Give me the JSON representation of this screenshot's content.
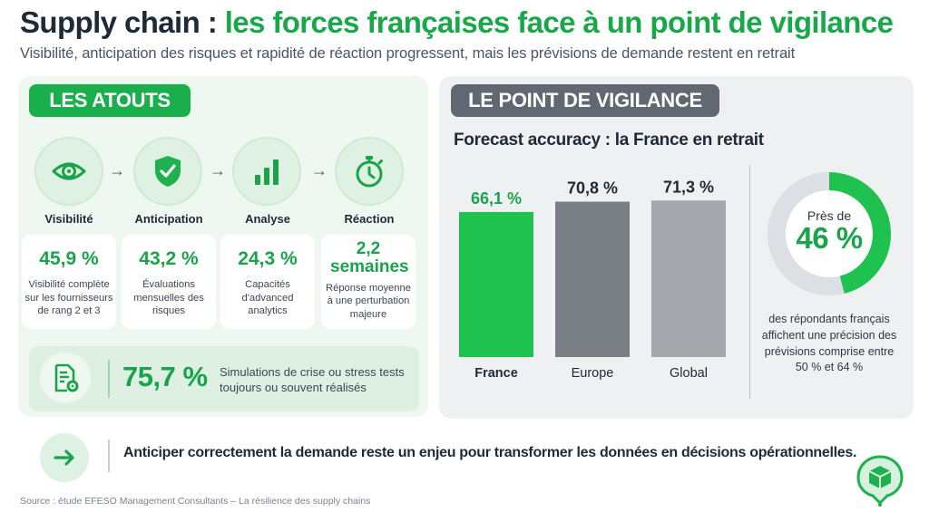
{
  "header": {
    "title_part1": "Supply chain :",
    "title_part2": "les forces françaises face à un point de vigilance",
    "subtitle": "Visibilité, anticipation des risques et rapidité de réaction progressent, mais les prévisions de demande restent en retrait"
  },
  "atouts": {
    "badge": "LES ATOUTS",
    "steps": [
      {
        "label": "Visibilité",
        "icon": "eye-icon"
      },
      {
        "label": "Anticipation",
        "icon": "shield-check-icon"
      },
      {
        "label": "Analyse",
        "icon": "bar-chart-icon"
      },
      {
        "label": "Réaction",
        "icon": "stopwatch-icon"
      }
    ],
    "arrow": "→",
    "stats": [
      {
        "value": "45,9 %",
        "desc": "Visibilité complète sur les fournisseurs de rang 2 et 3"
      },
      {
        "value": "43,2 %",
        "desc": "Évaluations mensuelles des risques"
      },
      {
        "value": "24,3 %",
        "desc": "Capacités d'advanced analytics"
      },
      {
        "value": "2,2 semaines",
        "desc": "Réponse moyenne à une perturbation majeure"
      }
    ],
    "simulation": {
      "value": "75,7 %",
      "desc": "Simulations de crise ou stress tests toujours ou souvent réalisés",
      "icon": "document-gear-icon"
    }
  },
  "vigilance": {
    "badge": "LE POINT DE VIGILANCE",
    "chart_title": "Forecast accuracy : la France en retrait",
    "donut": {
      "prefix": "Près de",
      "value": "46 %",
      "fraction": 0.46,
      "desc": "des répondants français affichent une précision des prévisions comprise entre 50 % et 64 %"
    }
  },
  "chart_data": {
    "type": "bar",
    "categories": [
      "France",
      "Europe",
      "Global"
    ],
    "values": [
      66.1,
      70.8,
      71.3
    ],
    "value_labels": [
      "66,1 %",
      "70,8 %",
      "71,3 %"
    ],
    "colors": [
      "#1fc24f",
      "#7a7f86",
      "#a4a7ab"
    ],
    "label_colors": [
      "#1aa34a",
      "#1f2a37",
      "#1f2a37"
    ],
    "title": "Forecast accuracy : la France en retrait",
    "xlabel": "",
    "ylabel": "",
    "ylim": [
      0,
      100
    ],
    "grid": false
  },
  "conclusion": {
    "text": "Anticiper correctement la demande reste un enjeu pour transformer les données en décisions opérationnelles.",
    "icon": "arrow-right-icon"
  },
  "source": "Source : étude EFESO Management Consultants – La résilience des supply chains",
  "colors": {
    "accent_green": "#1aa34a",
    "dark_gray": "#616872"
  }
}
